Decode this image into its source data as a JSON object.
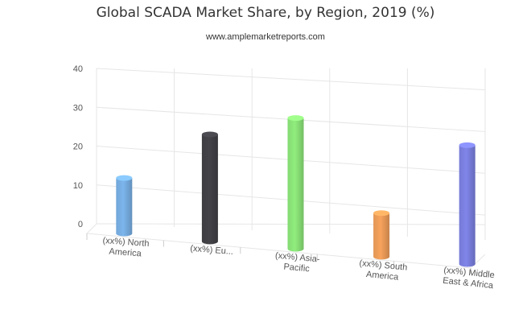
{
  "header": {
    "title": "Global SCADA Market Share, by Region, 2019 (%)",
    "subtitle": "www.amplemarketreports.com"
  },
  "chart_data": {
    "type": "bar",
    "title": "Global SCADA Market Share, by Region, 2019 (%)",
    "subtitle": "www.amplemarketreports.com",
    "categories": [
      [
        "(xx%) North",
        "America"
      ],
      [
        "(xx%) Eu..."
      ],
      [
        "(xx%) Asia-",
        "Pacific"
      ],
      [
        "(xx%) South",
        "America"
      ],
      [
        "(xx%) Middle",
        "East & Africa"
      ]
    ],
    "values": [
      14,
      27,
      33,
      11,
      30
    ],
    "colors": [
      "#7cb5ec",
      "#434348",
      "#90ed7d",
      "#f7a35c",
      "#8085e9"
    ],
    "y_ticks": [
      0,
      10,
      20,
      30,
      40
    ],
    "ylim": [
      0,
      40
    ],
    "grid": true,
    "legend": "none",
    "style": "3d-cylinder"
  }
}
